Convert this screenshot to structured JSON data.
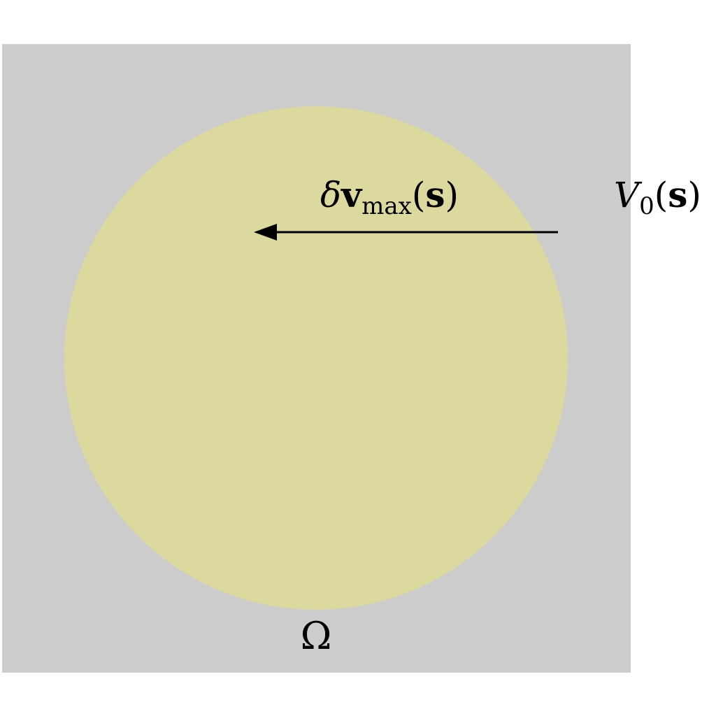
{
  "colors": {
    "domain_fill": "#cccccc",
    "region_fill": "#dcd99f",
    "arrow": "#000000",
    "text": "#000000"
  },
  "labels": {
    "arrow_label": {
      "delta": "δ",
      "v": "v",
      "subscript": "max",
      "open": "(",
      "s": "s",
      "close": ")"
    },
    "region_label": {
      "letter": "V",
      "subscript": "0",
      "open": "(",
      "s": "s",
      "close": ")"
    },
    "domain_label": "Ω"
  }
}
